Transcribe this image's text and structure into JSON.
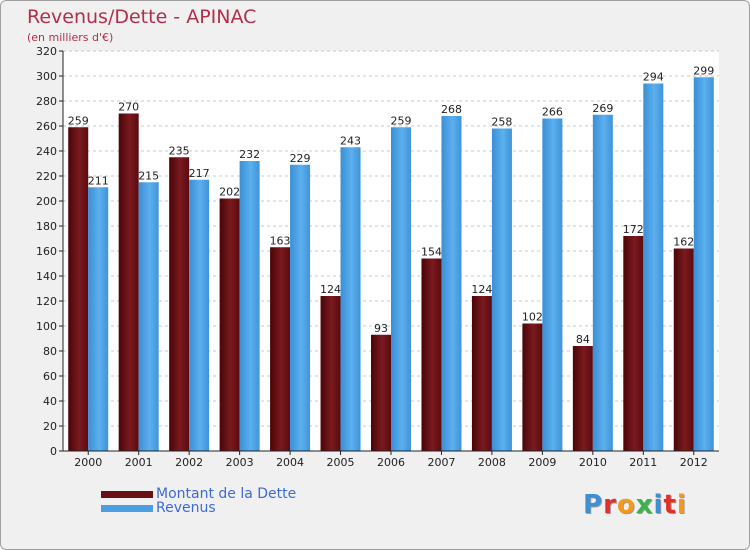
{
  "title": "Revenus/Dette - APINAC",
  "subtitle": "(en milliers d'€)",
  "logo": {
    "letters": [
      "P",
      "r",
      "o",
      "x",
      "i",
      "t",
      "i"
    ],
    "colors": [
      "#3d8fd6",
      "#e0302a",
      "#f29a1f",
      "#3db24a",
      "#3d8fd6",
      "#e0302a",
      "#f29a1f"
    ]
  },
  "colors": {
    "dette": "#6b0f16",
    "revenus": "#4a9fe0",
    "title": "#b0304a",
    "legend_text": "#3d6bd6"
  },
  "chart_data": {
    "type": "bar",
    "title": "Revenus/Dette - APINAC",
    "subtitle": "(en milliers d'€)",
    "categories": [
      "2000",
      "2001",
      "2002",
      "2003",
      "2004",
      "2005",
      "2006",
      "2007",
      "2008",
      "2009",
      "2010",
      "2011",
      "2012"
    ],
    "series": [
      {
        "name": "Montant de la Dette",
        "values": [
          259,
          270,
          235,
          202,
          163,
          124,
          93,
          154,
          124,
          102,
          84,
          172,
          162
        ]
      },
      {
        "name": "Revenus",
        "values": [
          211,
          215,
          217,
          232,
          229,
          243,
          259,
          268,
          258,
          266,
          269,
          294,
          299
        ]
      }
    ],
    "ylim": [
      0,
      320
    ],
    "yticks": [
      0,
      20,
      40,
      60,
      80,
      100,
      120,
      140,
      160,
      180,
      200,
      220,
      240,
      260,
      280,
      300,
      320
    ],
    "grid": true,
    "legend": "bottom-left"
  }
}
